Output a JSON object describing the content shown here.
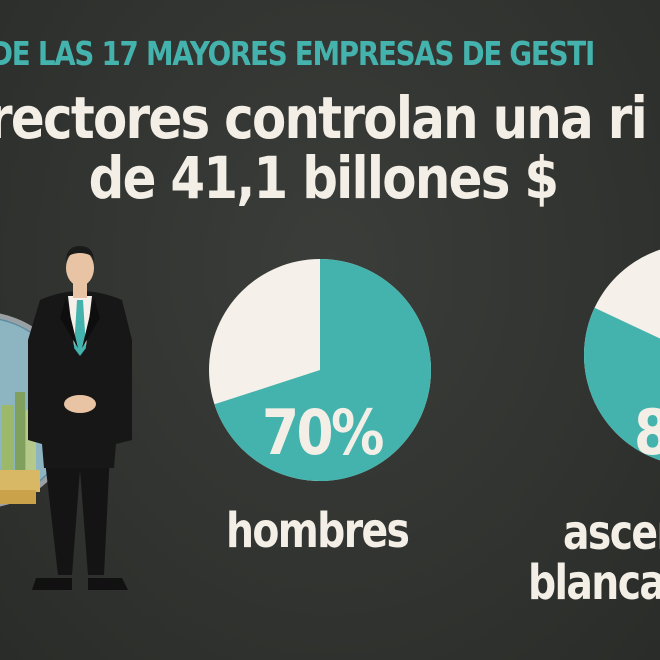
{
  "header": {
    "kicker": "DE LAS 17 MAYORES EMPRESAS DE GESTI",
    "headline_line1": "rectores controlan una ri",
    "headline_line2": "de 41,1 billones $"
  },
  "stats": [
    {
      "percent_label": "70%",
      "caption_line1": "hombres",
      "caption_line2": "",
      "share": 0.7
    },
    {
      "percent_label": "8",
      "caption_line1": "ascen",
      "caption_line2": "blanca",
      "share": 0.82
    }
  ],
  "colors": {
    "background": "#333532",
    "teal": "#45b3ad",
    "cream": "#f5f1ea",
    "suit": "#141414"
  },
  "illustration": {
    "figure": "businessman-icon",
    "scene": "city-globe-icon"
  }
}
